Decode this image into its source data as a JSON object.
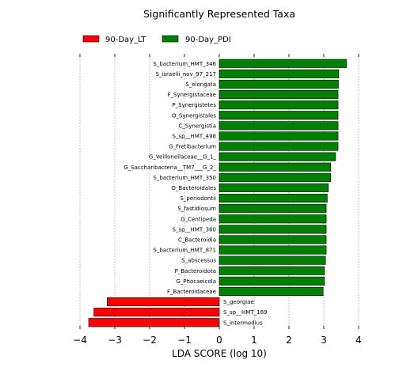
{
  "chart_data": {
    "type": "bar",
    "orientation": "horizontal",
    "title": "Significantly Represented Taxa",
    "xlabel": "LDA SCORE (log 10)",
    "xlim": [
      -4,
      4
    ],
    "xticks": [
      -4,
      -3,
      -2,
      -1,
      0,
      1,
      2,
      3,
      4
    ],
    "xtick_labels": [
      "−4",
      "−3",
      "−2",
      "−1",
      "0",
      "1",
      "2",
      "3",
      "4"
    ],
    "grid": "vertical-dotted",
    "legend_position": "top-left",
    "series": [
      {
        "name": "90-Day_LT",
        "color": "#ff0000"
      },
      {
        "name": "90-Day_PDI",
        "color": "#008000"
      }
    ],
    "bars": [
      {
        "label": "S_bacterium_HMT_346",
        "value": 3.65,
        "series": "90-Day_PDI"
      },
      {
        "label": "S_israelii_nov_97_217",
        "value": 3.43,
        "series": "90-Day_PDI"
      },
      {
        "label": "S_elongata",
        "value": 3.42,
        "series": "90-Day_PDI"
      },
      {
        "label": "F_Synergistaceae",
        "value": 3.41,
        "series": "90-Day_PDI"
      },
      {
        "label": "P_Synergistetes",
        "value": 3.41,
        "series": "90-Day_PDI"
      },
      {
        "label": "O_Synergistales",
        "value": 3.41,
        "series": "90-Day_PDI"
      },
      {
        "label": "C_Synergistia",
        "value": 3.41,
        "series": "90-Day_PDI"
      },
      {
        "label": "S_sp__HMT_498",
        "value": 3.41,
        "series": "90-Day_PDI"
      },
      {
        "label": "G_Fretibacterium",
        "value": 3.41,
        "series": "90-Day_PDI"
      },
      {
        "label": "G_Veillonellaceae__G_1_",
        "value": 3.34,
        "series": "90-Day_PDI"
      },
      {
        "label": "G_Saccharibacteria__TM7___G_2_",
        "value": 3.2,
        "series": "90-Day_PDI"
      },
      {
        "label": "S_bacterium_HMT_350",
        "value": 3.2,
        "series": "90-Day_PDI"
      },
      {
        "label": "O_Bacteroidales",
        "value": 3.13,
        "series": "90-Day_PDI"
      },
      {
        "label": "S_periodontii",
        "value": 3.1,
        "series": "90-Day_PDI"
      },
      {
        "label": "S_fastidiosum",
        "value": 3.07,
        "series": "90-Day_PDI"
      },
      {
        "label": "G_Centipeda",
        "value": 3.07,
        "series": "90-Day_PDI"
      },
      {
        "label": "S_sp__HMT_360",
        "value": 3.07,
        "series": "90-Day_PDI"
      },
      {
        "label": "C_Bacteroidia",
        "value": 3.07,
        "series": "90-Day_PDI"
      },
      {
        "label": "S_bacterium_HMT_871",
        "value": 3.07,
        "series": "90-Day_PDI"
      },
      {
        "label": "S_abscessus",
        "value": 3.05,
        "series": "90-Day_PDI"
      },
      {
        "label": "P_Bacteroidota",
        "value": 3.02,
        "series": "90-Day_PDI"
      },
      {
        "label": "G_Phocaeicola",
        "value": 3.02,
        "series": "90-Day_PDI"
      },
      {
        "label": "F_Bacteroidaceae",
        "value": 2.98,
        "series": "90-Day_PDI"
      },
      {
        "label": "S_georgiae",
        "value": -3.22,
        "series": "90-Day_LT"
      },
      {
        "label": "S_sp__HMT_169",
        "value": -3.6,
        "series": "90-Day_LT"
      },
      {
        "label": "S_intermedius",
        "value": -3.75,
        "series": "90-Day_LT"
      }
    ]
  }
}
